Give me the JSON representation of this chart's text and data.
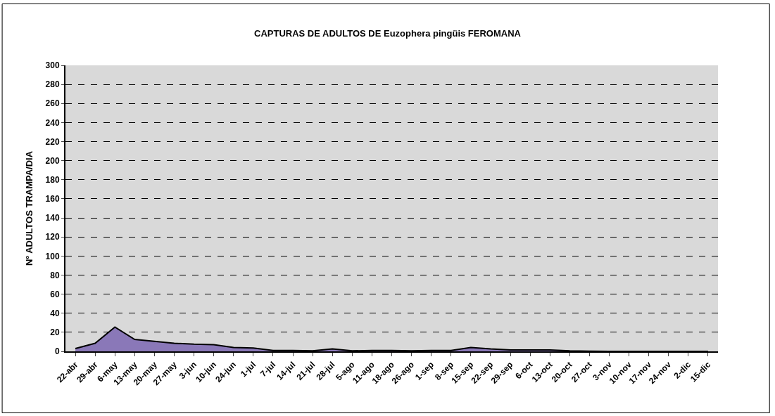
{
  "chart_data": {
    "type": "area",
    "title": "CAPTURAS DE ADULTOS DE Euzophera pingüis FEROMANA",
    "ylabel": "Nº ADULTOS TRAMPA/DIA",
    "categories": [
      "22-abr",
      "29-abr",
      "6-may",
      "13-may",
      "20-may",
      "27-may",
      "3-jun",
      "10-jun",
      "24-jun",
      "1-jul",
      "7-jul",
      "14-jul",
      "21-jul",
      "28-jul",
      "5-ago",
      "11-ago",
      "18-ago",
      "26-ago",
      "1-sep",
      "8-sep",
      "15-sep",
      "22-sep",
      "29-sep",
      "6-oct",
      "13-oct",
      "20-oct",
      "27-oct",
      "3-nov",
      "10-nov",
      "17-nov",
      "24-nov",
      "2-dic",
      "15-dic"
    ],
    "series": [
      {
        "color": "#8a78b8",
        "values": [
          3,
          8.5,
          25.5,
          12.5,
          10.5,
          8.5,
          7.5,
          7,
          4,
          3.5,
          1,
          1,
          0.5,
          2.5,
          0.5,
          1,
          1,
          0.5,
          1,
          1,
          4,
          2.5,
          1.5,
          1.5,
          1.5,
          0.5,
          0.2,
          0,
          0,
          0,
          0,
          0,
          0
        ]
      }
    ],
    "ylim": [
      0,
      300
    ],
    "yticks": [
      0,
      20,
      40,
      60,
      80,
      100,
      120,
      140,
      160,
      180,
      200,
      220,
      240,
      260,
      280,
      300
    ],
    "grid": "y"
  }
}
